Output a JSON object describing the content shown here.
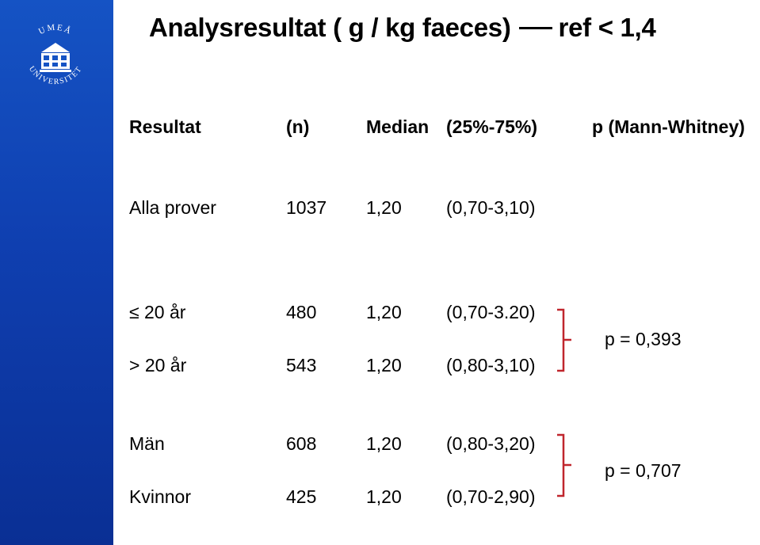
{
  "slide": {
    "title_main": "Analysresultat ( g / kg faeces)",
    "title_ref": "ref < 1,4",
    "logo_text": "UMEÅ UNIVERSITET"
  },
  "table": {
    "headers": {
      "resultat": "Resultat",
      "n": "(n)",
      "median": "Median",
      "iqr": "(25%-75%)",
      "p": "p (Mann-Whitney)"
    },
    "rows": [
      {
        "label": "Alla prover",
        "n": "1037",
        "median": "1,20",
        "iqr": "(0,70-3,10)"
      },
      {
        "label": "≤ 20 år",
        "n": "480",
        "median": "1,20",
        "iqr": "(0,70-3.20)"
      },
      {
        "label": "> 20 år",
        "n": "543",
        "median": "1,20",
        "iqr": "(0,80-3,10)"
      },
      {
        "label": "Män",
        "n": "608",
        "median": "1,20",
        "iqr": "(0,80-3,20)"
      },
      {
        "label": "Kvinnor",
        "n": "425",
        "median": "1,20",
        "iqr": "(0,70-2,90)"
      }
    ],
    "comparisons": [
      {
        "p": "p = 0,393"
      },
      {
        "p": "p = 0,707"
      }
    ],
    "bracket_color": "#c0262d"
  }
}
